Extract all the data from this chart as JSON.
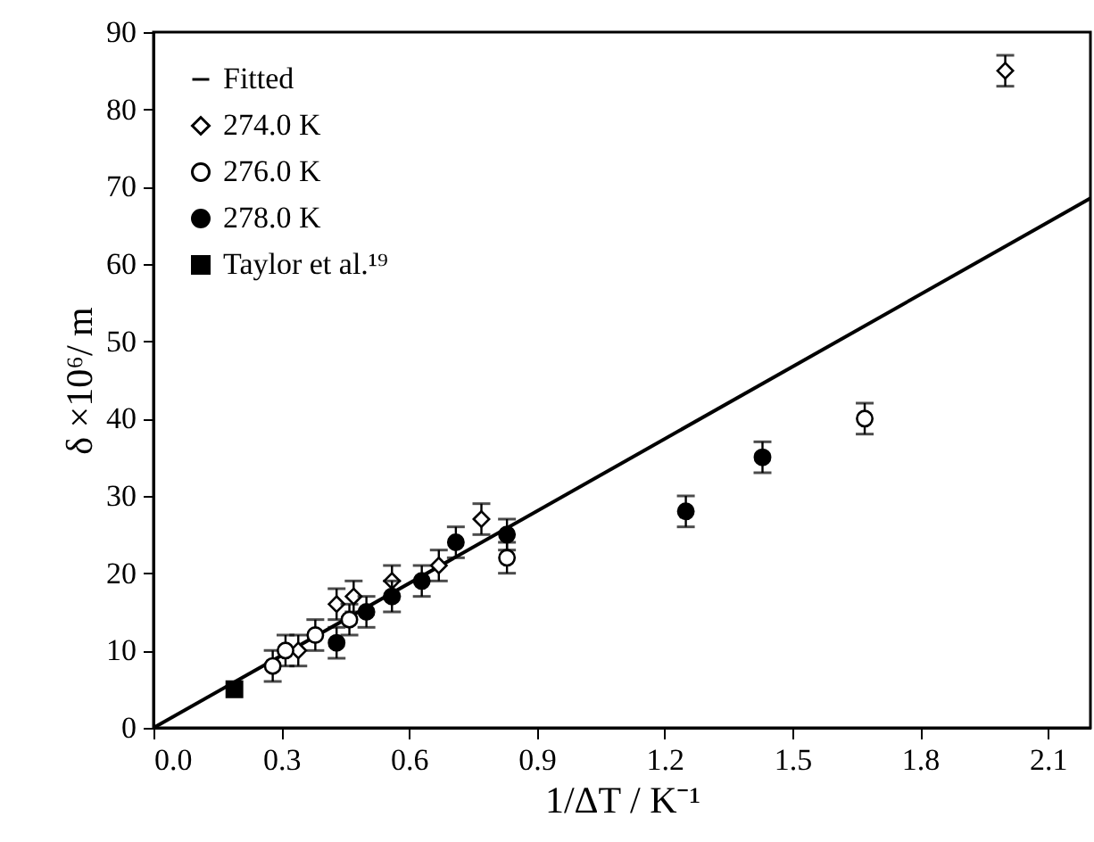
{
  "chart_data": {
    "type": "scatter",
    "xlabel": "1/ΔT / K⁻¹",
    "ylabel": "δ ×10⁶/ m",
    "xlim": [
      0,
      2.2
    ],
    "ylim": [
      0,
      90
    ],
    "xticks": [
      {
        "value": 0,
        "label": "0.0"
      },
      0.3,
      0.6,
      0.9,
      1.2,
      1.5,
      1.8,
      2.1
    ],
    "yticks": [
      0,
      10,
      20,
      30,
      40,
      50,
      60,
      70,
      80,
      90
    ],
    "grid": false,
    "legend": "top left",
    "series": [
      {
        "name": "Fitted",
        "type": "line",
        "color": "#000000",
        "x": [
          0,
          2.2
        ],
        "values": [
          0,
          68.5
        ]
      },
      {
        "name": "274.0 K",
        "marker": "diamond",
        "color": "#ffffff",
        "x": [
          0.34,
          0.43,
          0.47,
          0.56,
          0.67,
          0.77,
          2.0
        ],
        "values": [
          10,
          16,
          17,
          19,
          21,
          27,
          85
        ],
        "errors": [
          2,
          2,
          2,
          2,
          2,
          2,
          2
        ]
      },
      {
        "name": "276.0 K",
        "marker": "circle",
        "color": "#ffffff",
        "x": [
          0.28,
          0.31,
          0.38,
          0.46,
          0.83,
          1.67
        ],
        "values": [
          8,
          10,
          12,
          14,
          22,
          40
        ],
        "errors": [
          2,
          2,
          2,
          2,
          2,
          2
        ]
      },
      {
        "name": "278.0 K",
        "marker": "circle",
        "color": "#000000",
        "x": [
          0.43,
          0.5,
          0.56,
          0.63,
          0.71,
          0.83,
          1.25,
          1.43
        ],
        "values": [
          11,
          15,
          17,
          19,
          24,
          25,
          28,
          35
        ],
        "errors": [
          2,
          2,
          2,
          2,
          2,
          2,
          2,
          2
        ]
      },
      {
        "name": "Taylor et al.¹⁹",
        "marker": "square",
        "color": "#000000",
        "x": [
          0.19
        ],
        "values": [
          5
        ]
      }
    ]
  }
}
